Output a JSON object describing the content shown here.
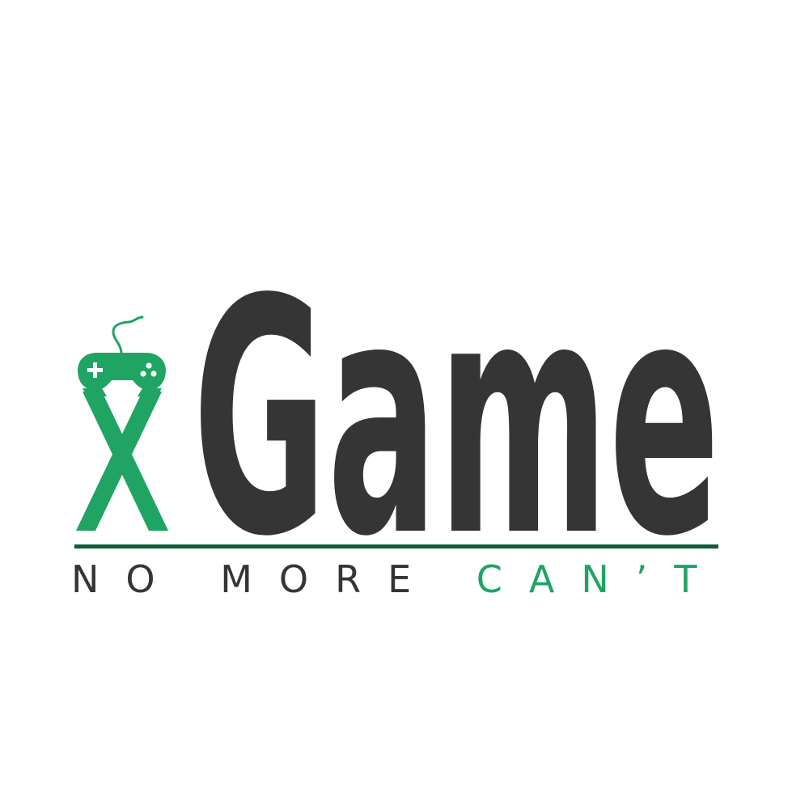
{
  "logo": {
    "wordmark": "xGame",
    "x_letter": "x",
    "game_text": "Game",
    "tagline_part1": "NO MORE ",
    "tagline_part2": "CAN’T",
    "icon": "gamepad-icon"
  },
  "colors": {
    "accent": "#1fa463",
    "dark": "#353535",
    "background": "#ffffff",
    "rule": "#0d5c3a"
  }
}
